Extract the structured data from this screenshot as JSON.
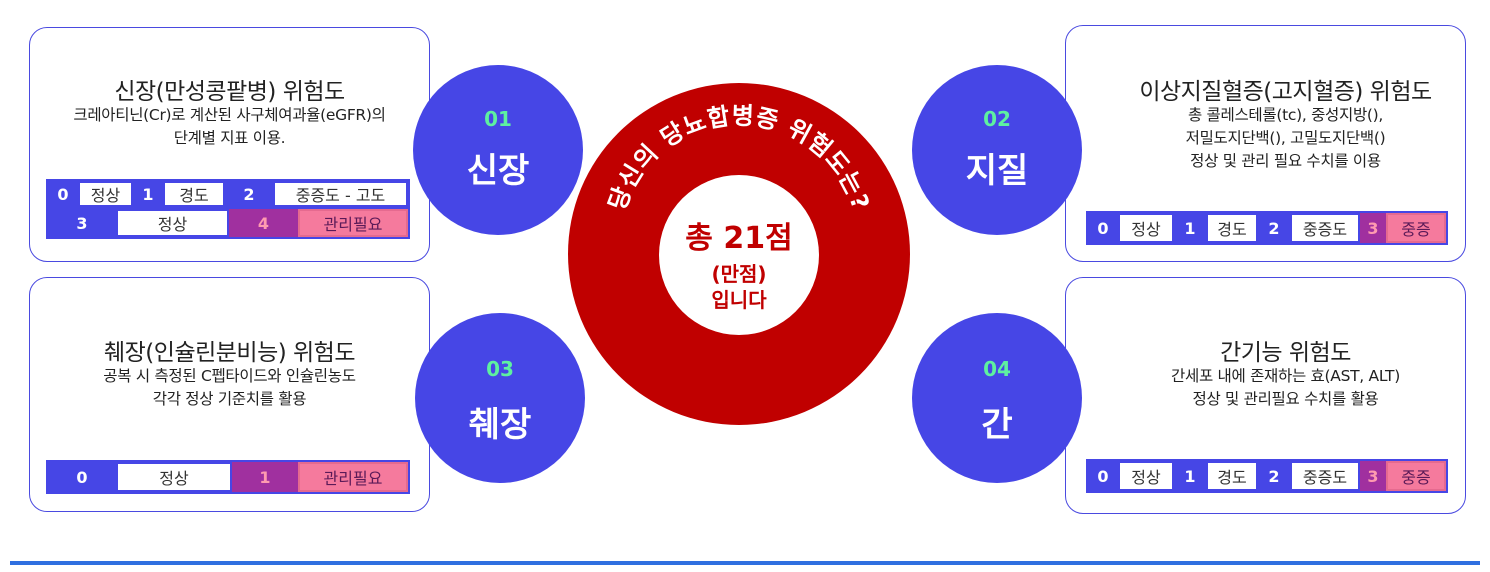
{
  "center": {
    "arc_text": "당신의 당뇨합병증 위험도는?",
    "total": "총 21점",
    "max_label": "(만점)",
    "suffix": "입니다"
  },
  "cards": {
    "kidney": {
      "title": "신장(만성콩팥병) 위험도",
      "desc1": "크레아티닌(Cr)로 계산된 사구체여과율(eGFR)의",
      "desc2": "단계별 지표 이용.",
      "badge_num": "01",
      "badge_label": "신장",
      "grades": [
        {
          "n": "0",
          "label": "정상"
        },
        {
          "n": "1",
          "label": "경도"
        },
        {
          "n": "2",
          "label": "중증도 - 고도"
        },
        {
          "n": "3",
          "label": "정상"
        },
        {
          "n": "4",
          "label": "관리필요"
        }
      ]
    },
    "lipid": {
      "title": "이상지질혈증(고지혈증) 위험도",
      "desc1": "총 콜레스테롤(tc), 중성지방(),",
      "desc2": "저밀도지단백(), 고밀도지단백()",
      "desc3": "정상 및 관리 필요 수치를 이용",
      "badge_num": "02",
      "badge_label": "지질",
      "grades": [
        {
          "n": "0",
          "label": "정상"
        },
        {
          "n": "1",
          "label": "경도"
        },
        {
          "n": "2",
          "label": "중증도"
        },
        {
          "n": "3",
          "label": "중증"
        }
      ]
    },
    "pancreas": {
      "title": "췌장(인슐린분비능) 위험도",
      "desc1": "공복 시 측정된 C펩타이드와 인슐린농도",
      "desc2": "각각 정상 기준치를 활용",
      "badge_num": "03",
      "badge_label": "췌장",
      "grades": [
        {
          "n": "0",
          "label": "정상"
        },
        {
          "n": "1",
          "label": "관리필요"
        }
      ]
    },
    "liver": {
      "title": "간기능 위험도",
      "desc1": "간세포 내에 존재하는 효(AST, ALT)",
      "desc2": "정상 및 관리필요 수치를 활용",
      "badge_num": "04",
      "badge_label": "간",
      "grades": [
        {
          "n": "0",
          "label": "정상"
        },
        {
          "n": "1",
          "label": "경도"
        },
        {
          "n": "2",
          "label": "중증도"
        },
        {
          "n": "3",
          "label": "중증"
        }
      ]
    }
  },
  "colors": {
    "primary": "#4646e6",
    "center_red": "#c00000",
    "number_green": "#5ef0a0",
    "highlight_pink": "#f57a9d",
    "highlight_purple": "#a0309f"
  }
}
